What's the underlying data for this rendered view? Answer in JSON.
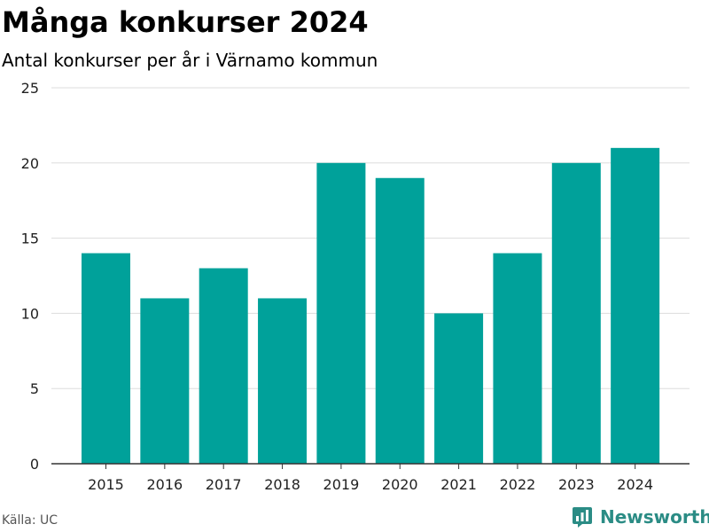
{
  "header": {
    "title": "Många konkurser 2024",
    "subtitle": "Antal konkurser per år i Värnamo kommun"
  },
  "footer": {
    "source": "Källa: UC",
    "brand": "Newsworthy",
    "brand_icon": "newsworthy-logo-icon"
  },
  "colors": {
    "bar": "#00A19A",
    "grid": "#dddddd",
    "axis": "#333333",
    "text": "#222222",
    "brand": "#2b8c85"
  },
  "chart_data": {
    "type": "bar",
    "categories": [
      "2015",
      "2016",
      "2017",
      "2018",
      "2019",
      "2020",
      "2021",
      "2022",
      "2023",
      "2024"
    ],
    "values": [
      14,
      11,
      13,
      11,
      20,
      19,
      10,
      14,
      20,
      21
    ],
    "yticks": [
      0,
      5,
      10,
      15,
      20,
      25
    ],
    "ylim": [
      0,
      25
    ],
    "title": "Många konkurser 2024",
    "subtitle": "Antal konkurser per år i Värnamo kommun",
    "xlabel": "",
    "ylabel": "",
    "grid": true,
    "legend": "none"
  }
}
